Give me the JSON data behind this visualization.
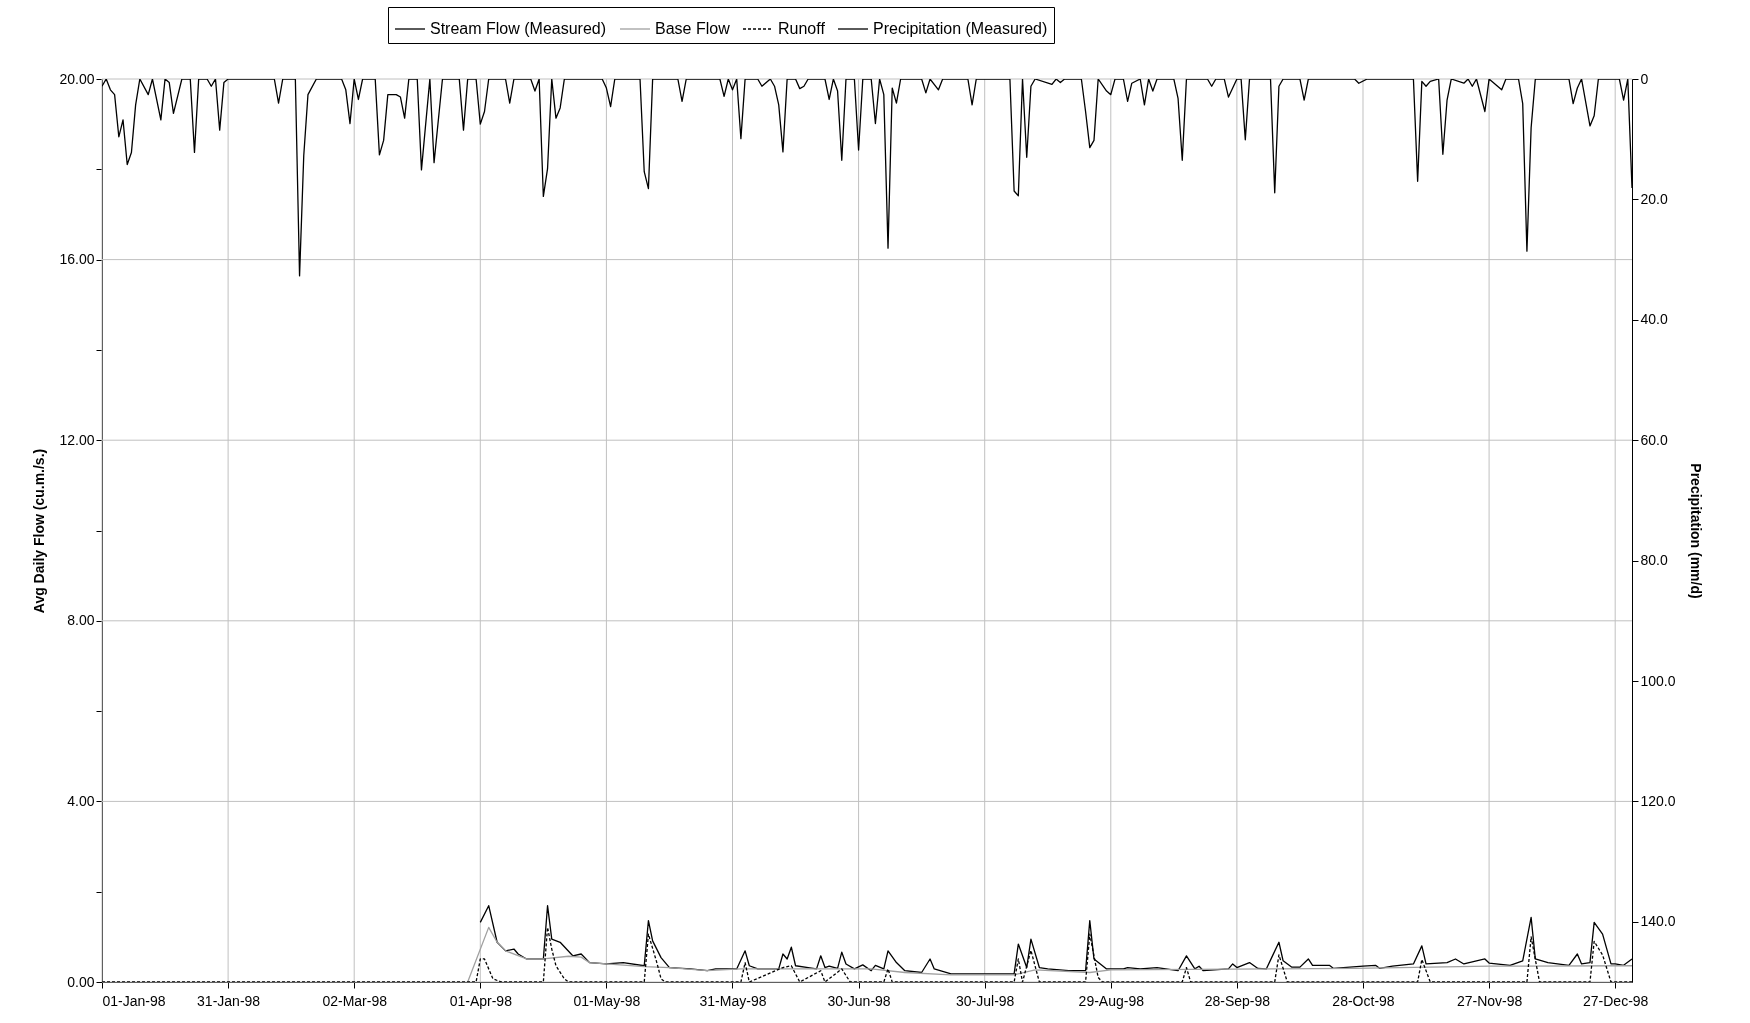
{
  "chart_data": {
    "type": "line",
    "ylabel": "Avg Daily Flow (cu.m./s.)",
    "y2label": "Precipitation (mm/d)",
    "xlim": [
      "1998-01-01",
      "1998-12-31"
    ],
    "xticks": [
      {
        "value": "1998-01-01",
        "label": "01-Jan-98"
      },
      {
        "value": "1998-01-31",
        "label": "31-Jan-98"
      },
      {
        "value": "1998-03-02",
        "label": "02-Mar-98"
      },
      {
        "value": "1998-04-01",
        "label": "01-Apr-98"
      },
      {
        "value": "1998-05-01",
        "label": "01-May-98"
      },
      {
        "value": "1998-05-31",
        "label": "31-May-98"
      },
      {
        "value": "1998-06-30",
        "label": "30-Jun-98"
      },
      {
        "value": "1998-07-30",
        "label": "30-Jul-98"
      },
      {
        "value": "1998-08-29",
        "label": "29-Aug-98"
      },
      {
        "value": "1998-09-28",
        "label": "28-Sep-98"
      },
      {
        "value": "1998-10-28",
        "label": "28-Oct-98"
      },
      {
        "value": "1998-11-27",
        "label": "27-Nov-98"
      },
      {
        "value": "1998-12-27",
        "label": "27-Dec-98"
      }
    ],
    "ylim": [
      0,
      20
    ],
    "yticks": [
      {
        "value": 0,
        "label": "0.00"
      },
      {
        "value": 2,
        "label": null
      },
      {
        "value": 4,
        "label": "4.00"
      },
      {
        "value": 6,
        "label": null
      },
      {
        "value": 8,
        "label": "8.00"
      },
      {
        "value": 10,
        "label": null
      },
      {
        "value": 12,
        "label": "12.00"
      },
      {
        "value": 14,
        "label": null
      },
      {
        "value": 16,
        "label": "16.00"
      },
      {
        "value": 18,
        "label": null
      },
      {
        "value": 20,
        "label": "20.00"
      }
    ],
    "y2lim": [
      150,
      0
    ],
    "y2ticks": [
      {
        "value": 0,
        "label": "0"
      },
      {
        "value": 20,
        "label": "20.0"
      },
      {
        "value": 40,
        "label": "40.0"
      },
      {
        "value": 60,
        "label": "60.0"
      },
      {
        "value": 80,
        "label": "80.0"
      },
      {
        "value": 100,
        "label": "100.0"
      },
      {
        "value": 120,
        "label": "120.0"
      },
      {
        "value": 140,
        "label": "140.0"
      }
    ],
    "grid": true,
    "legend": "top",
    "series": [
      {
        "name": "Stream Flow (Measured)",
        "color": "#000000",
        "line_style": "solid",
        "x": [
          "1998-04-01",
          "1998-04-03",
          "1998-04-05",
          "1998-04-07",
          "1998-04-09",
          "1998-04-10",
          "1998-04-12",
          "1998-04-16",
          "1998-04-17",
          "1998-04-18",
          "1998-04-20",
          "1998-04-23",
          "1998-04-25",
          "1998-04-27",
          "1998-05-01",
          "1998-05-05",
          "1998-05-10",
          "1998-05-11",
          "1998-05-12",
          "1998-05-14",
          "1998-05-16",
          "1998-05-21",
          "1998-05-25",
          "1998-05-27",
          "1998-06-01",
          "1998-06-03",
          "1998-06-04",
          "1998-06-06",
          "1998-06-11",
          "1998-06-12",
          "1998-06-13",
          "1998-06-14",
          "1998-06-15",
          "1998-06-18",
          "1998-06-20",
          "1998-06-21",
          "1998-06-22",
          "1998-06-23",
          "1998-06-25",
          "1998-06-26",
          "1998-06-27",
          "1998-06-29",
          "1998-07-01",
          "1998-07-03",
          "1998-07-04",
          "1998-07-06",
          "1998-07-07",
          "1998-07-09",
          "1998-07-11",
          "1998-07-15",
          "1998-07-17",
          "1998-07-18",
          "1998-07-22",
          "1998-07-28",
          "1998-08-06",
          "1998-08-07",
          "1998-08-09",
          "1998-08-10",
          "1998-08-12",
          "1998-08-14",
          "1998-08-19",
          "1998-08-23",
          "1998-08-24",
          "1998-08-25",
          "1998-08-28",
          "1998-09-01",
          "1998-09-02",
          "1998-09-05",
          "1998-09-09",
          "1998-09-14",
          "1998-09-16",
          "1998-09-18",
          "1998-09-19",
          "1998-09-20",
          "1998-09-26",
          "1998-09-27",
          "1998-09-28",
          "1998-10-01",
          "1998-10-03",
          "1998-10-05",
          "1998-10-08",
          "1998-10-09",
          "1998-10-11",
          "1998-10-13",
          "1998-10-15",
          "1998-10-16",
          "1998-10-20",
          "1998-10-21",
          "1998-10-28",
          "1998-10-31",
          "1998-11-01",
          "1998-11-04",
          "1998-11-09",
          "1998-11-11",
          "1998-11-12",
          "1998-11-17",
          "1998-11-19",
          "1998-11-21",
          "1998-11-24",
          "1998-11-26",
          "1998-11-27",
          "1998-12-02",
          "1998-12-05",
          "1998-12-07",
          "1998-12-08",
          "1998-12-11",
          "1998-12-16",
          "1998-12-18",
          "1998-12-19",
          "1998-12-21",
          "1998-12-22",
          "1998-12-24",
          "1998-12-26",
          "1998-12-27",
          "1998-12-29",
          "1998-12-31"
        ],
        "values": [
          1.32,
          1.69,
          0.88,
          0.69,
          0.73,
          0.62,
          0.51,
          0.51,
          1.69,
          0.95,
          0.88,
          0.58,
          0.62,
          0.43,
          0.4,
          0.43,
          0.36,
          1.36,
          0.91,
          0.54,
          0.32,
          0.29,
          0.25,
          0.29,
          0.29,
          0.69,
          0.36,
          0.29,
          0.29,
          0.62,
          0.51,
          0.77,
          0.36,
          0.32,
          0.29,
          0.58,
          0.32,
          0.35,
          0.3,
          0.66,
          0.4,
          0.29,
          0.38,
          0.25,
          0.37,
          0.29,
          0.69,
          0.43,
          0.25,
          0.21,
          0.51,
          0.29,
          0.18,
          0.18,
          0.18,
          0.84,
          0.32,
          0.95,
          0.32,
          0.29,
          0.25,
          0.25,
          1.36,
          0.51,
          0.29,
          0.29,
          0.32,
          0.29,
          0.32,
          0.25,
          0.58,
          0.29,
          0.35,
          0.25,
          0.29,
          0.4,
          0.32,
          0.43,
          0.3,
          0.29,
          0.88,
          0.47,
          0.33,
          0.33,
          0.51,
          0.37,
          0.37,
          0.3,
          0.35,
          0.37,
          0.3,
          0.35,
          0.4,
          0.8,
          0.4,
          0.43,
          0.51,
          0.4,
          0.47,
          0.51,
          0.42,
          0.37,
          0.47,
          1.43,
          0.51,
          0.43,
          0.37,
          0.62,
          0.4,
          0.43,
          1.32,
          1.06,
          0.4,
          0.4,
          0.37,
          0.51
        ]
      },
      {
        "name": "Base Flow",
        "color": "#a0a0a0",
        "line_style": "solid",
        "x": [
          "1998-03-29",
          "1998-04-03",
          "1998-04-05",
          "1998-04-07",
          "1998-04-12",
          "1998-04-16",
          "1998-04-22",
          "1998-04-25",
          "1998-04-27",
          "1998-05-01",
          "1998-05-10",
          "1998-05-16",
          "1998-05-25",
          "1998-06-02",
          "1998-07-03",
          "1998-07-11",
          "1998-07-22",
          "1998-08-06",
          "1998-08-11",
          "1998-08-24",
          "1998-08-29",
          "1998-10-07",
          "1998-10-26",
          "1998-11-27",
          "1998-12-31"
        ],
        "values": [
          0,
          1.21,
          0.88,
          0.69,
          0.51,
          0.51,
          0.57,
          0.55,
          0.43,
          0.4,
          0.34,
          0.32,
          0.25,
          0.29,
          0.29,
          0.21,
          0.16,
          0.16,
          0.27,
          0.21,
          0.27,
          0.29,
          0.3,
          0.35,
          0.36
        ]
      },
      {
        "name": "Runoff",
        "color": "#000000",
        "line_style": "dashed",
        "x": [
          "1998-01-01",
          "1998-03-31",
          "1998-04-01",
          "1998-04-02",
          "1998-04-04",
          "1998-04-06",
          "1998-04-16",
          "1998-04-17",
          "1998-04-18",
          "1998-04-19",
          "1998-04-21",
          "1998-04-22",
          "1998-05-10",
          "1998-05-11",
          "1998-05-13",
          "1998-05-14",
          "1998-05-15",
          "1998-06-02",
          "1998-06-03",
          "1998-06-04",
          "1998-06-12",
          "1998-06-14",
          "1998-06-16",
          "1998-06-21",
          "1998-06-22",
          "1998-06-26",
          "1998-06-28",
          "1998-07-06",
          "1998-07-07",
          "1998-07-08",
          "1998-08-06",
          "1998-08-07",
          "1998-08-08",
          "1998-08-10",
          "1998-08-12",
          "1998-08-23",
          "1998-08-24",
          "1998-08-26",
          "1998-08-27",
          "1998-09-15",
          "1998-09-16",
          "1998-09-17",
          "1998-10-07",
          "1998-10-08",
          "1998-10-10",
          "1998-11-10",
          "1998-11-11",
          "1998-11-13",
          "1998-12-06",
          "1998-12-07",
          "1998-12-09",
          "1998-12-21",
          "1998-12-22",
          "1998-12-24",
          "1998-12-26",
          "1998-12-31"
        ],
        "values": [
          0,
          0,
          0.51,
          0.51,
          0.07,
          0,
          0,
          1.21,
          0.73,
          0.36,
          0.07,
          0,
          0,
          1.06,
          0.43,
          0.07,
          0,
          0,
          0.43,
          0,
          0.32,
          0.36,
          0,
          0.25,
          0,
          0.29,
          0,
          0,
          0.29,
          0,
          0,
          0.51,
          0,
          0.7,
          0,
          0,
          1.06,
          0.1,
          0,
          0,
          0.32,
          0,
          0,
          0.6,
          0,
          0,
          0.5,
          0,
          0,
          1.0,
          0,
          0,
          0.9,
          0.6,
          0,
          0
        ]
      },
      {
        "name": "Precipitation (Measured)",
        "color": "#000000",
        "line_style": "solid",
        "axis": "y2",
        "x": [
          "1998-01-01",
          "1998-01-02",
          "1998-01-03",
          "1998-01-04",
          "1998-01-05",
          "1998-01-06",
          "1998-01-07",
          "1998-01-08",
          "1998-01-09",
          "1998-01-10",
          "1998-01-12",
          "1998-01-13",
          "1998-01-15",
          "1998-01-16",
          "1998-01-17",
          "1998-01-18",
          "1998-01-20",
          "1998-01-22",
          "1998-01-23",
          "1998-01-24",
          "1998-01-26",
          "1998-01-27",
          "1998-01-28",
          "1998-01-29",
          "1998-01-30",
          "1998-01-31",
          "1998-02-11",
          "1998-02-12",
          "1998-02-13",
          "1998-02-16",
          "1998-02-17",
          "1998-02-18",
          "1998-02-19",
          "1998-02-21",
          "1998-02-27",
          "1998-02-28",
          "1998-03-01",
          "1998-03-02",
          "1998-03-03",
          "1998-03-04",
          "1998-03-07",
          "1998-03-08",
          "1998-03-09",
          "1998-03-10",
          "1998-03-12",
          "1998-03-13",
          "1998-03-14",
          "1998-03-15",
          "1998-03-17",
          "1998-03-18",
          "1998-03-20",
          "1998-03-21",
          "1998-03-23",
          "1998-03-27",
          "1998-03-28",
          "1998-03-29",
          "1998-03-31",
          "1998-04-01",
          "1998-04-02",
          "1998-04-03",
          "1998-04-07",
          "1998-04-08",
          "1998-04-09",
          "1998-04-13",
          "1998-04-14",
          "1998-04-15",
          "1998-04-16",
          "1998-04-17",
          "1998-04-18",
          "1998-04-19",
          "1998-04-20",
          "1998-04-21",
          "1998-04-30",
          "1998-05-01",
          "1998-05-02",
          "1998-05-03",
          "1998-05-09",
          "1998-05-10",
          "1998-05-11",
          "1998-05-12",
          "1998-05-18",
          "1998-05-19",
          "1998-05-20",
          "1998-05-28",
          "1998-05-29",
          "1998-05-30",
          "1998-05-31",
          "1998-06-01",
          "1998-06-02",
          "1998-06-03",
          "1998-06-06",
          "1998-06-07",
          "1998-06-09",
          "1998-06-10",
          "1998-06-11",
          "1998-06-12",
          "1998-06-13",
          "1998-06-15",
          "1998-06-16",
          "1998-06-17",
          "1998-06-18",
          "1998-06-22",
          "1998-06-23",
          "1998-06-24",
          "1998-06-25",
          "1998-06-26",
          "1998-06-27",
          "1998-06-29",
          "1998-06-30",
          "1998-07-01",
          "1998-07-03",
          "1998-07-04",
          "1998-07-05",
          "1998-07-06",
          "1998-07-07",
          "1998-07-08",
          "1998-07-09",
          "1998-07-10",
          "1998-07-15",
          "1998-07-16",
          "1998-07-17",
          "1998-07-19",
          "1998-07-20",
          "1998-07-26",
          "1998-07-27",
          "1998-07-28",
          "1998-08-05",
          "1998-08-06",
          "1998-08-07",
          "1998-08-08",
          "1998-08-09",
          "1998-08-10",
          "1998-08-11",
          "1998-08-15",
          "1998-08-16",
          "1998-08-17",
          "1998-08-18",
          "1998-08-22",
          "1998-08-23",
          "1998-08-24",
          "1998-08-25",
          "1998-08-26",
          "1998-08-28",
          "1998-08-29",
          "1998-08-30",
          "1998-09-01",
          "1998-09-02",
          "1998-09-03",
          "1998-09-05",
          "1998-09-06",
          "1998-09-07",
          "1998-09-08",
          "1998-09-09",
          "1998-09-13",
          "1998-09-14",
          "1998-09-15",
          "1998-09-16",
          "1998-09-21",
          "1998-09-22",
          "1998-09-23",
          "1998-09-25",
          "1998-09-26",
          "1998-09-27",
          "1998-09-28",
          "1998-09-29",
          "1998-09-30",
          "1998-10-01",
          "1998-10-06",
          "1998-10-07",
          "1998-10-08",
          "1998-10-09",
          "1998-10-13",
          "1998-10-14",
          "1998-10-15",
          "1998-10-26",
          "1998-10-27",
          "1998-10-29",
          "1998-11-09",
          "1998-11-10",
          "1998-11-11",
          "1998-11-12",
          "1998-11-13",
          "1998-11-15",
          "1998-11-16",
          "1998-11-17",
          "1998-11-18",
          "1998-11-21",
          "1998-11-22",
          "1998-11-23",
          "1998-11-24",
          "1998-11-26",
          "1998-11-27",
          "1998-11-30",
          "1998-12-01",
          "1998-12-04",
          "1998-12-05",
          "1998-12-06",
          "1998-12-07",
          "1998-12-08",
          "1998-12-16",
          "1998-12-17",
          "1998-12-18",
          "1998-12-19",
          "1998-12-21",
          "1998-12-22",
          "1998-12-23",
          "1998-12-28",
          "1998-12-29",
          "1998-12-30",
          "1998-12-31"
        ],
        "values": [
          1.2,
          0,
          1.8,
          2.6,
          9.6,
          6.8,
          14.2,
          12.2,
          4.3,
          0,
          2.6,
          0,
          6.8,
          0,
          0.6,
          5.7,
          0,
          0,
          12.2,
          0,
          0,
          1.2,
          0,
          8.5,
          0.6,
          0,
          0,
          4.0,
          0,
          0,
          32.7,
          12.7,
          2.6,
          0,
          0,
          1.8,
          7.4,
          0,
          3.4,
          0,
          0,
          12.6,
          10.2,
          2.6,
          2.6,
          3.0,
          6.5,
          0,
          0,
          15.1,
          0,
          13.9,
          0,
          0,
          8.5,
          0,
          0,
          7.5,
          5.4,
          0,
          0,
          4.0,
          0,
          0,
          2.0,
          0,
          19.5,
          14.9,
          0,
          6.5,
          4.8,
          0,
          0,
          1.5,
          4.6,
          0,
          0,
          15.4,
          18.2,
          0,
          0,
          3.7,
          0,
          0,
          2.9,
          0,
          1.8,
          0,
          9.9,
          0,
          0,
          1.2,
          0,
          1.2,
          4.3,
          12.1,
          0,
          0,
          1.6,
          1.2,
          0,
          0,
          3.4,
          0,
          2.0,
          13.5,
          0,
          0,
          11.8,
          0,
          0,
          7.4,
          0,
          2.6,
          28.1,
          1.5,
          4.0,
          0,
          0,
          2.3,
          0,
          1.8,
          0,
          0,
          4.3,
          0,
          0,
          18.6,
          19.4,
          0,
          13.0,
          1.2,
          0,
          0.9,
          0,
          0.6,
          0,
          0,
          5.4,
          11.4,
          10.2,
          0,
          2.0,
          2.6,
          0,
          0,
          3.7,
          0.7,
          0,
          4.3,
          0,
          2.0,
          0,
          0,
          3.2,
          13.5,
          0,
          0,
          1.2,
          0,
          0,
          3.0,
          1.5,
          0,
          0,
          10.1,
          0,
          0,
          18.9,
          1.2,
          0,
          0,
          3.5,
          0,
          0,
          0.7,
          0,
          0,
          17.0,
          0.4,
          1.2,
          0.4,
          0,
          12.5,
          3.5,
          0,
          0.7,
          0,
          1.2,
          0,
          5.4,
          0,
          1.8,
          0,
          0,
          4.1,
          28.6,
          8.1,
          0,
          0,
          4.1,
          1.5,
          0,
          7.8,
          6.1,
          0,
          0,
          3.5,
          0,
          18.1
        ]
      }
    ]
  }
}
